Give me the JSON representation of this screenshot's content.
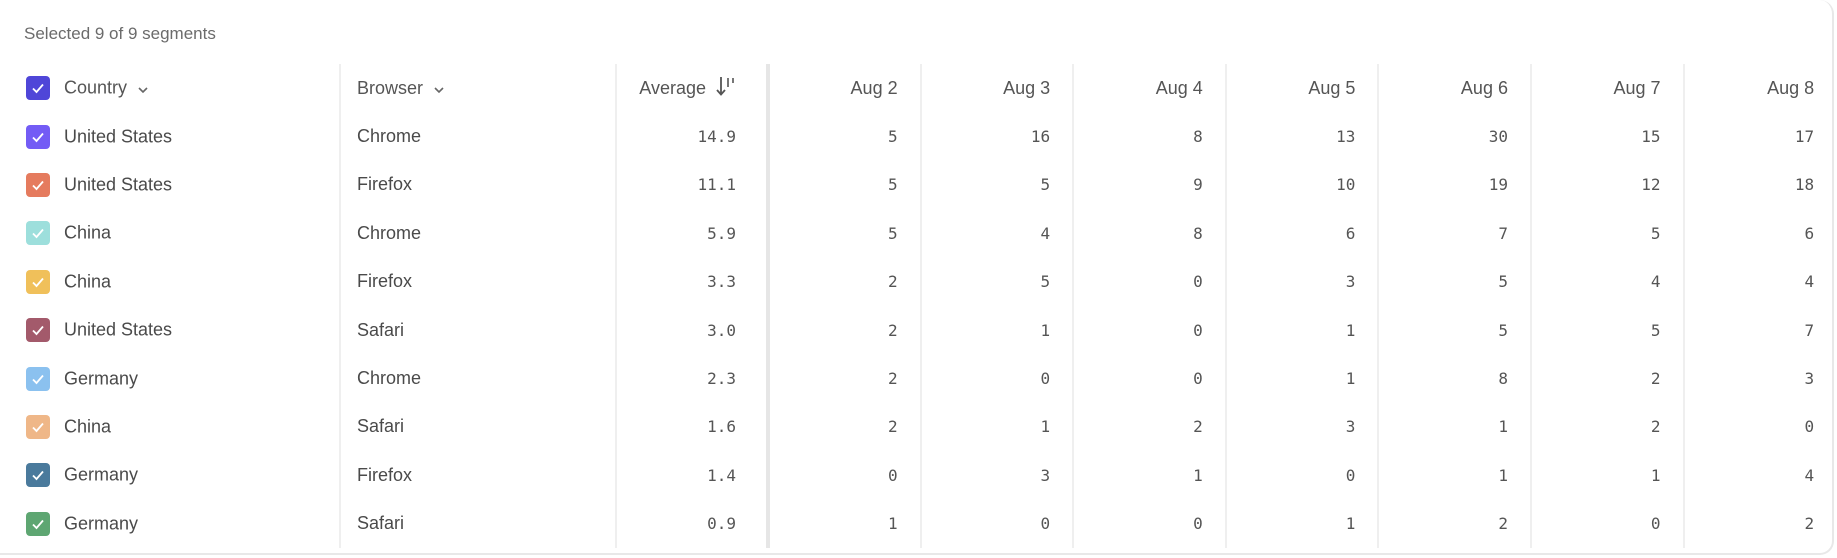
{
  "summary": "Selected 9 of 9 segments",
  "header": {
    "country": "Country",
    "browser": "Browser",
    "average": "Average",
    "dates": [
      "Aug 2",
      "Aug 3",
      "Aug 4",
      "Aug 5",
      "Aug 6",
      "Aug 7",
      "Aug 8"
    ],
    "select_all_color": "#4f46d8",
    "sort_icon": "sort-descending-icon"
  },
  "rows": [
    {
      "country": "United States",
      "browser": "Chrome",
      "average": "14.9",
      "values": [
        "5",
        "16",
        "8",
        "13",
        "30",
        "15",
        "17"
      ],
      "color": "#735cf5"
    },
    {
      "country": "United States",
      "browser": "Firefox",
      "average": "11.1",
      "values": [
        "5",
        "5",
        "9",
        "10",
        "19",
        "12",
        "18"
      ],
      "color": "#e57b5e"
    },
    {
      "country": "China",
      "browser": "Chrome",
      "average": "5.9",
      "values": [
        "5",
        "4",
        "8",
        "6",
        "7",
        "5",
        "6"
      ],
      "color": "#9ddfdc"
    },
    {
      "country": "China",
      "browser": "Firefox",
      "average": "3.3",
      "values": [
        "2",
        "5",
        "0",
        "3",
        "5",
        "4",
        "4"
      ],
      "color": "#f0c05a"
    },
    {
      "country": "United States",
      "browser": "Safari",
      "average": "3.0",
      "values": [
        "2",
        "1",
        "0",
        "1",
        "5",
        "5",
        "7"
      ],
      "color": "#a35a6b"
    },
    {
      "country": "Germany",
      "browser": "Chrome",
      "average": "2.3",
      "values": [
        "2",
        "0",
        "0",
        "1",
        "8",
        "2",
        "3"
      ],
      "color": "#8bc1ef"
    },
    {
      "country": "China",
      "browser": "Safari",
      "average": "1.6",
      "values": [
        "2",
        "1",
        "2",
        "3",
        "1",
        "2",
        "0"
      ],
      "color": "#efb788"
    },
    {
      "country": "Germany",
      "browser": "Firefox",
      "average": "1.4",
      "values": [
        "0",
        "3",
        "1",
        "0",
        "1",
        "1",
        "4"
      ],
      "color": "#4a7a9c"
    },
    {
      "country": "Germany",
      "browser": "Safari",
      "average": "0.9",
      "values": [
        "1",
        "0",
        "0",
        "1",
        "2",
        "0",
        "2"
      ],
      "color": "#5ea672"
    }
  ]
}
